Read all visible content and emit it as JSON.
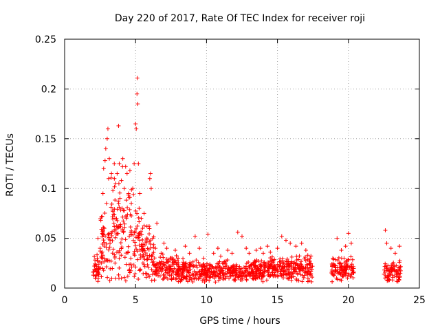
{
  "chart_data": {
    "type": "scatter",
    "title": "Day 220 of 2017, Rate Of TEC Index for receiver roji",
    "xlabel": "GPS time / hours",
    "ylabel": "ROTI / TECUs",
    "xlim": [
      0,
      25
    ],
    "ylim": [
      0,
      0.25
    ],
    "xticks": [
      0,
      5,
      10,
      15,
      20,
      25
    ],
    "xtick_labels": [
      "0",
      "5",
      "10",
      "15",
      "20",
      "25"
    ],
    "yticks": [
      0,
      0.05,
      0.1,
      0.15,
      0.2,
      0.25
    ],
    "ytick_labels": [
      "0",
      "0.05",
      "0.1",
      "0.15",
      "0.2",
      "0.25"
    ],
    "grid": true,
    "marker": "+",
    "color": "#ff0000",
    "series": [
      {
        "name": "ROTI",
        "points": [
          [
            2.0,
            0.016
          ],
          [
            2.1,
            0.022
          ],
          [
            2.2,
            0.012
          ],
          [
            2.3,
            0.03
          ],
          [
            2.35,
            0.05
          ],
          [
            2.4,
            0.018
          ],
          [
            2.5,
            0.04
          ],
          [
            2.55,
            0.068
          ],
          [
            2.6,
            0.025
          ],
          [
            2.65,
            0.072
          ],
          [
            2.7,
            0.095
          ],
          [
            2.75,
            0.12
          ],
          [
            2.8,
            0.06
          ],
          [
            2.85,
            0.128
          ],
          [
            2.9,
            0.14
          ],
          [
            2.95,
            0.085
          ],
          [
            3.0,
            0.15
          ],
          [
            3.05,
            0.16
          ],
          [
            3.1,
            0.11
          ],
          [
            3.15,
            0.13
          ],
          [
            3.2,
            0.045
          ],
          [
            3.3,
            0.115
          ],
          [
            3.4,
            0.098
          ],
          [
            3.5,
            0.125
          ],
          [
            3.55,
            0.07
          ],
          [
            3.6,
            0.105
          ],
          [
            3.7,
            0.115
          ],
          [
            3.75,
            0.06
          ],
          [
            3.8,
            0.163
          ],
          [
            3.85,
            0.125
          ],
          [
            3.9,
            0.09
          ],
          [
            4.0,
            0.108
          ],
          [
            4.05,
            0.08
          ],
          [
            4.1,
            0.13
          ],
          [
            4.2,
            0.1
          ],
          [
            4.3,
            0.122
          ],
          [
            4.35,
            0.07
          ],
          [
            4.4,
            0.115
          ],
          [
            4.5,
            0.095
          ],
          [
            4.6,
            0.118
          ],
          [
            4.7,
            0.085
          ],
          [
            4.8,
            0.1
          ],
          [
            4.9,
            0.125
          ],
          [
            5.0,
            0.165
          ],
          [
            5.05,
            0.16
          ],
          [
            5.1,
            0.195
          ],
          [
            5.12,
            0.211
          ],
          [
            5.15,
            0.185
          ],
          [
            5.2,
            0.125
          ],
          [
            5.25,
            0.08
          ],
          [
            5.3,
            0.095
          ],
          [
            5.4,
            0.07
          ],
          [
            5.5,
            0.06
          ],
          [
            5.6,
            0.075
          ],
          [
            5.8,
            0.062
          ],
          [
            6.0,
            0.11
          ],
          [
            6.05,
            0.115
          ],
          [
            6.1,
            0.1
          ],
          [
            6.2,
            0.05
          ],
          [
            6.4,
            0.04
          ],
          [
            6.5,
            0.065
          ],
          [
            6.8,
            0.035
          ],
          [
            7.0,
            0.045
          ],
          [
            7.2,
            0.04
          ],
          [
            7.5,
            0.03
          ],
          [
            7.8,
            0.038
          ],
          [
            8.0,
            0.03
          ],
          [
            8.5,
            0.042
          ],
          [
            8.8,
            0.035
          ],
          [
            9.2,
            0.052
          ],
          [
            9.5,
            0.04
          ],
          [
            9.8,
            0.03
          ],
          [
            10.1,
            0.054
          ],
          [
            10.5,
            0.035
          ],
          [
            10.8,
            0.04
          ],
          [
            11.0,
            0.032
          ],
          [
            11.5,
            0.038
          ],
          [
            11.8,
            0.035
          ],
          [
            12.2,
            0.056
          ],
          [
            12.5,
            0.052
          ],
          [
            12.8,
            0.04
          ],
          [
            13.0,
            0.035
          ],
          [
            13.5,
            0.038
          ],
          [
            13.8,
            0.04
          ],
          [
            14.0,
            0.035
          ],
          [
            14.3,
            0.042
          ],
          [
            14.5,
            0.036
          ],
          [
            15.0,
            0.04
          ],
          [
            15.3,
            0.052
          ],
          [
            15.6,
            0.048
          ],
          [
            15.9,
            0.045
          ],
          [
            16.3,
            0.042
          ],
          [
            16.7,
            0.045
          ],
          [
            17.0,
            0.038
          ],
          [
            17.3,
            0.03
          ],
          [
            18.9,
            0.03
          ],
          [
            19.2,
            0.05
          ],
          [
            19.5,
            0.038
          ],
          [
            19.8,
            0.042
          ],
          [
            20.0,
            0.055
          ],
          [
            20.2,
            0.045
          ],
          [
            22.6,
            0.058
          ],
          [
            22.7,
            0.045
          ],
          [
            23.0,
            0.04
          ],
          [
            23.3,
            0.035
          ],
          [
            23.6,
            0.042
          ]
        ]
      }
    ],
    "clusters": [
      {
        "x_start": 2.0,
        "x_end": 2.5,
        "level": 0.02,
        "spread": 0.012
      },
      {
        "x_start": 2.5,
        "x_end": 3.2,
        "level": 0.045,
        "spread": 0.04
      },
      {
        "x_start": 3.2,
        "x_end": 4.8,
        "level": 0.06,
        "spread": 0.05
      },
      {
        "x_start": 4.8,
        "x_end": 5.3,
        "level": 0.045,
        "spread": 0.04
      },
      {
        "x_start": 5.3,
        "x_end": 6.3,
        "level": 0.035,
        "spread": 0.025
      },
      {
        "x_start": 6.3,
        "x_end": 8.0,
        "level": 0.02,
        "spread": 0.012
      },
      {
        "x_start": 8.0,
        "x_end": 14.0,
        "level": 0.017,
        "spread": 0.01
      },
      {
        "x_start": 14.0,
        "x_end": 17.5,
        "level": 0.02,
        "spread": 0.012
      },
      {
        "x_start": 18.8,
        "x_end": 20.4,
        "level": 0.018,
        "spread": 0.01
      },
      {
        "x_start": 22.5,
        "x_end": 23.7,
        "level": 0.016,
        "spread": 0.01
      }
    ]
  }
}
